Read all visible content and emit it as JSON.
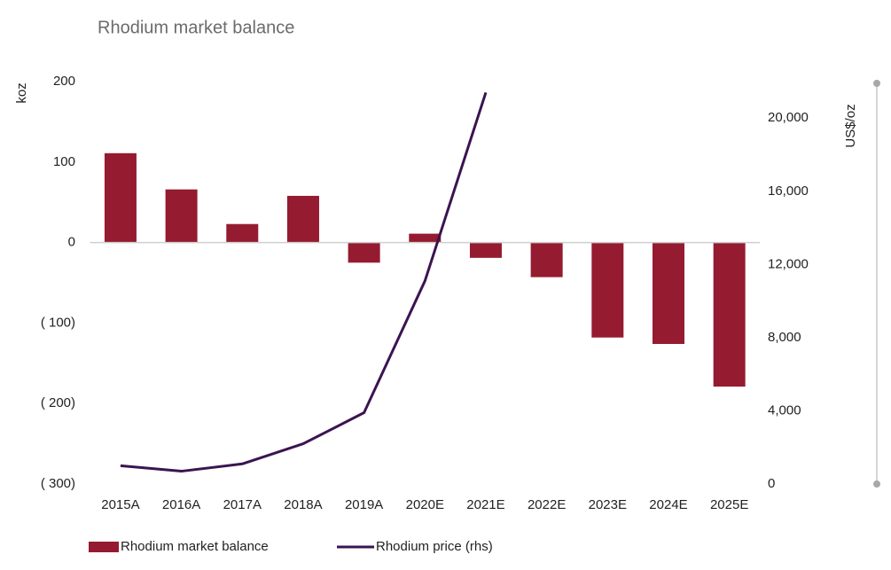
{
  "chart_data": {
    "type": "bar_line",
    "title": "Rhodium market balance",
    "y_label": "koz",
    "y2_label": "US$/oz",
    "categories": [
      "2015A",
      "2016A",
      "2017A",
      "2018A",
      "2019A",
      "2020E",
      "2021E",
      "2022E",
      "2023E",
      "2024E",
      "2025E"
    ],
    "series": [
      {
        "name": "Rhodium market balance",
        "type": "bar",
        "color": "#951b30",
        "values": [
          111,
          66,
          23,
          58,
          -25,
          11,
          -19,
          -43,
          -118,
          -126,
          -179
        ]
      },
      {
        "name": "Rhodium price (rhs)",
        "type": "line",
        "axis": "y2",
        "color": "#3b1450",
        "values": [
          1000,
          700,
          1100,
          2200,
          3900,
          11100,
          21400,
          null,
          null,
          null,
          null
        ]
      }
    ],
    "ylim": [
      -300,
      200
    ],
    "yticks": [
      {
        "value": -300,
        "label": "( 300)"
      },
      {
        "value": -200,
        "label": "( 200)"
      },
      {
        "value": -100,
        "label": "( 100)"
      },
      0,
      100,
      200
    ],
    "y2lim": [
      0,
      22000
    ],
    "y2ticks": [
      0,
      {
        "value": 4000,
        "label": "4,000"
      },
      {
        "value": 8000,
        "label": "8,000"
      },
      {
        "value": 12000,
        "label": "12,000"
      },
      {
        "value": 16000,
        "label": "16,000"
      },
      {
        "value": 20000,
        "label": "20,000"
      }
    ],
    "legend": "bottom"
  }
}
